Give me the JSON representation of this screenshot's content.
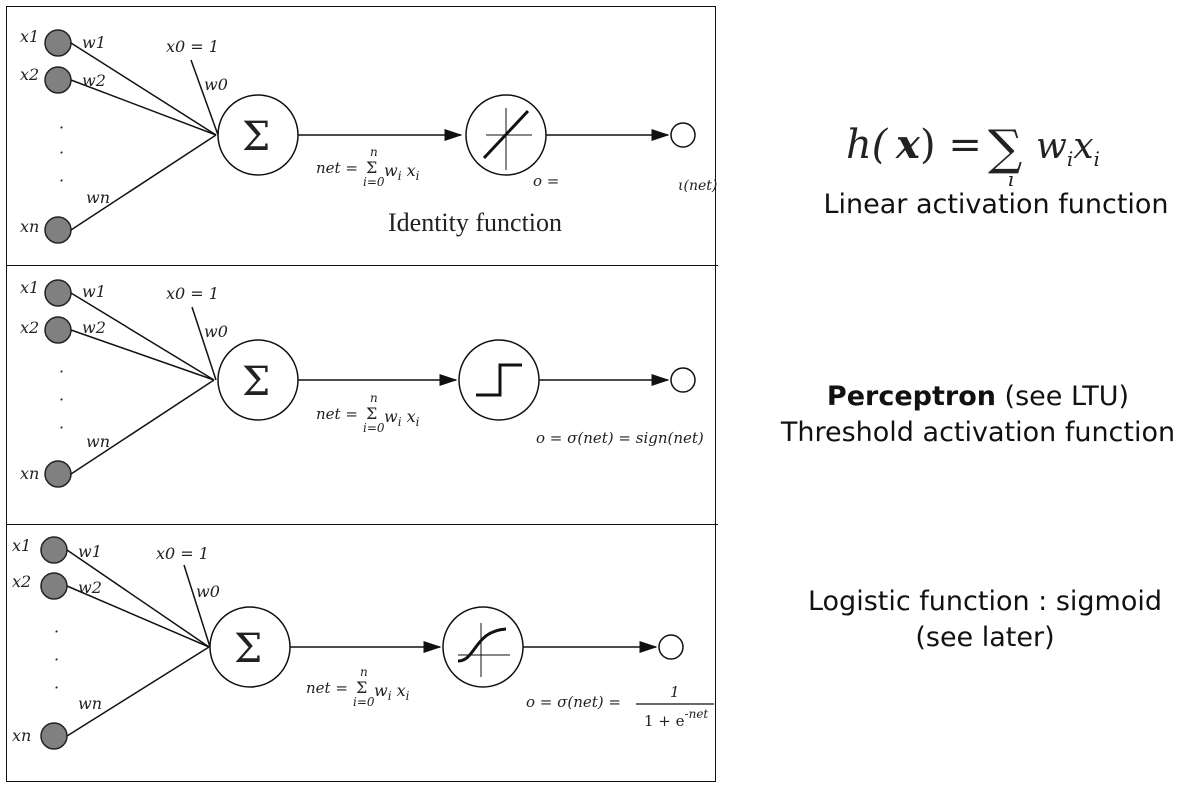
{
  "panels": [
    {
      "inputs": [
        "x1",
        "x2",
        "xn"
      ],
      "weights": [
        "w1",
        "w2",
        "wn"
      ],
      "bias_input": "x0 = 1",
      "bias_weight": "w0",
      "net_text": "net =",
      "sum_upper": "n",
      "sum_lower": "i=0",
      "net_rhs": "w",
      "net_sub_i": "i",
      "net_x": "x",
      "output_label": "o =",
      "output_rhs": "ι(net)",
      "caption": "Identity function",
      "activation_icon": "linear-icon"
    },
    {
      "inputs": [
        "x1",
        "x2",
        "xn"
      ],
      "weights": [
        "w1",
        "w2",
        "wn"
      ],
      "bias_input": "x0 = 1",
      "bias_weight": "w0",
      "net_text": "net =",
      "sum_upper": "n",
      "sum_lower": "i=0",
      "output_label": "o = σ(net) = sign(net)",
      "activation_icon": "step-icon"
    },
    {
      "inputs": [
        "x1",
        "x2",
        "xn"
      ],
      "weights": [
        "w1",
        "w2",
        "wn"
      ],
      "bias_input": "x0 = 1",
      "bias_weight": "w0",
      "net_text": "net =",
      "sum_upper": "n",
      "sum_lower": "i=0",
      "output_label": "o = σ(net) =",
      "fraction_num": "1",
      "fraction_den": "1 + e",
      "fraction_exp": "-net",
      "activation_icon": "sigmoid-icon"
    }
  ],
  "sigma_symbol": "Σ",
  "right": {
    "formula_h": "h(",
    "formula_x": "x",
    "formula_close": ") =",
    "formula_sum": "∑",
    "formula_sub": "i",
    "formula_terms": "w",
    "formula_terms_i": "i",
    "formula_x2": "x",
    "formula_x2_i": "i",
    "linear_label": "Linear activation function",
    "perceptron_bold": "Perceptron",
    "perceptron_rest": " (see LTU)",
    "threshold_label": "Threshold activation function",
    "logistic_label": "Logistic function : sigmoid",
    "logistic_sub": "(see later)"
  },
  "colors": {
    "node_fill": "#808080",
    "stroke": "#111111"
  }
}
